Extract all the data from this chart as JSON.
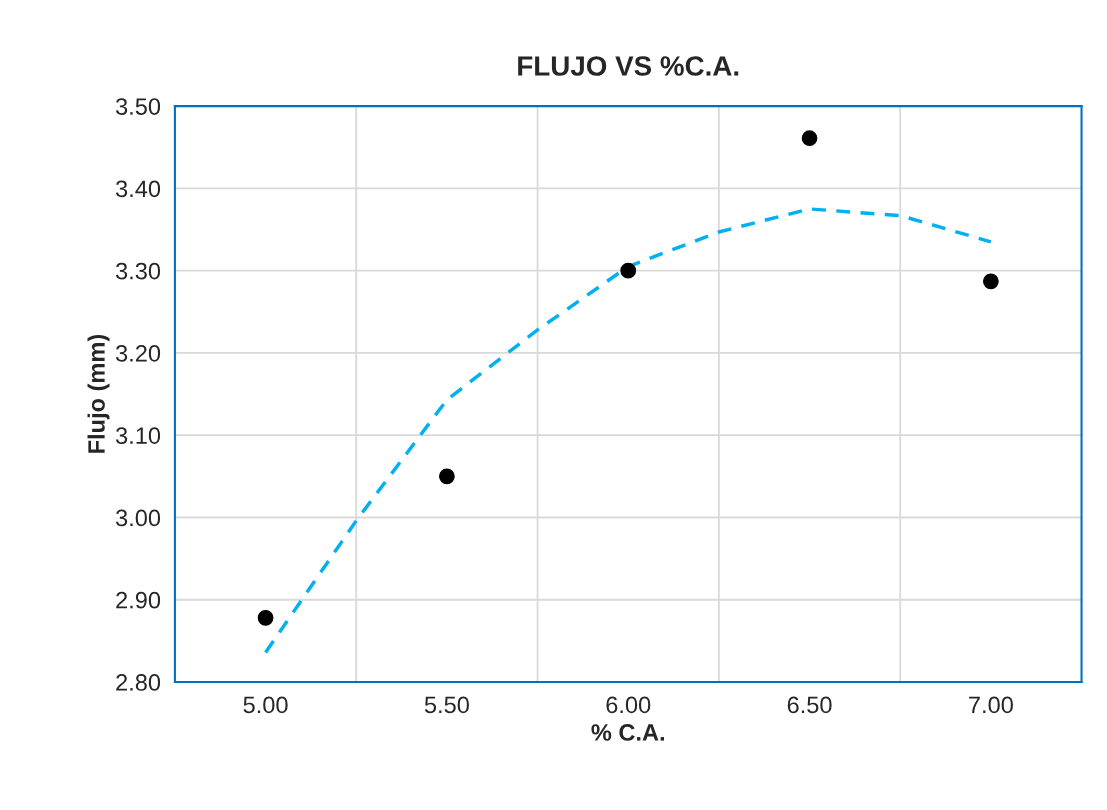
{
  "chart_data": {
    "type": "scatter",
    "title": "FLUJO VS %C.A.",
    "xlabel": "% C.A.",
    "ylabel": "Flujo (mm)",
    "xlim": [
      4.75,
      7.25
    ],
    "xticks": [
      {
        "value": 5.0,
        "label": "5.00"
      },
      {
        "value": 5.5,
        "label": "5.50"
      },
      {
        "value": 6.0,
        "label": "6.00"
      },
      {
        "value": 6.5,
        "label": "6.50"
      },
      {
        "value": 7.0,
        "label": "7.00"
      }
    ],
    "ylim": [
      2.8,
      3.5
    ],
    "yticks": [
      {
        "value": 2.8,
        "label": "2.80"
      },
      {
        "value": 2.9,
        "label": "2.90"
      },
      {
        "value": 3.0,
        "label": "3.00"
      },
      {
        "value": 3.1,
        "label": "3.10"
      },
      {
        "value": 3.2,
        "label": "3.20"
      },
      {
        "value": 3.3,
        "label": "3.30"
      },
      {
        "value": 3.4,
        "label": "3.40"
      },
      {
        "value": 3.5,
        "label": "3.50"
      }
    ],
    "grid": true,
    "legend": false,
    "series": [
      {
        "color": "#000000",
        "marker": "circle",
        "x": [
          5.0,
          5.5,
          6.0,
          6.5,
          7.0
        ],
        "values": [
          2.878,
          3.05,
          3.3,
          3.461,
          3.287
        ]
      },
      {
        "type": "line",
        "color": "#00b0f0",
        "line_style": "dashed",
        "marker": "none",
        "x": [
          5.0,
          5.25,
          5.5,
          5.75,
          6.0,
          6.25,
          6.5,
          6.75,
          7.0
        ],
        "values": [
          2.836,
          2.996,
          3.143,
          3.228,
          3.305,
          3.347,
          3.375,
          3.367,
          3.335
        ]
      }
    ]
  }
}
